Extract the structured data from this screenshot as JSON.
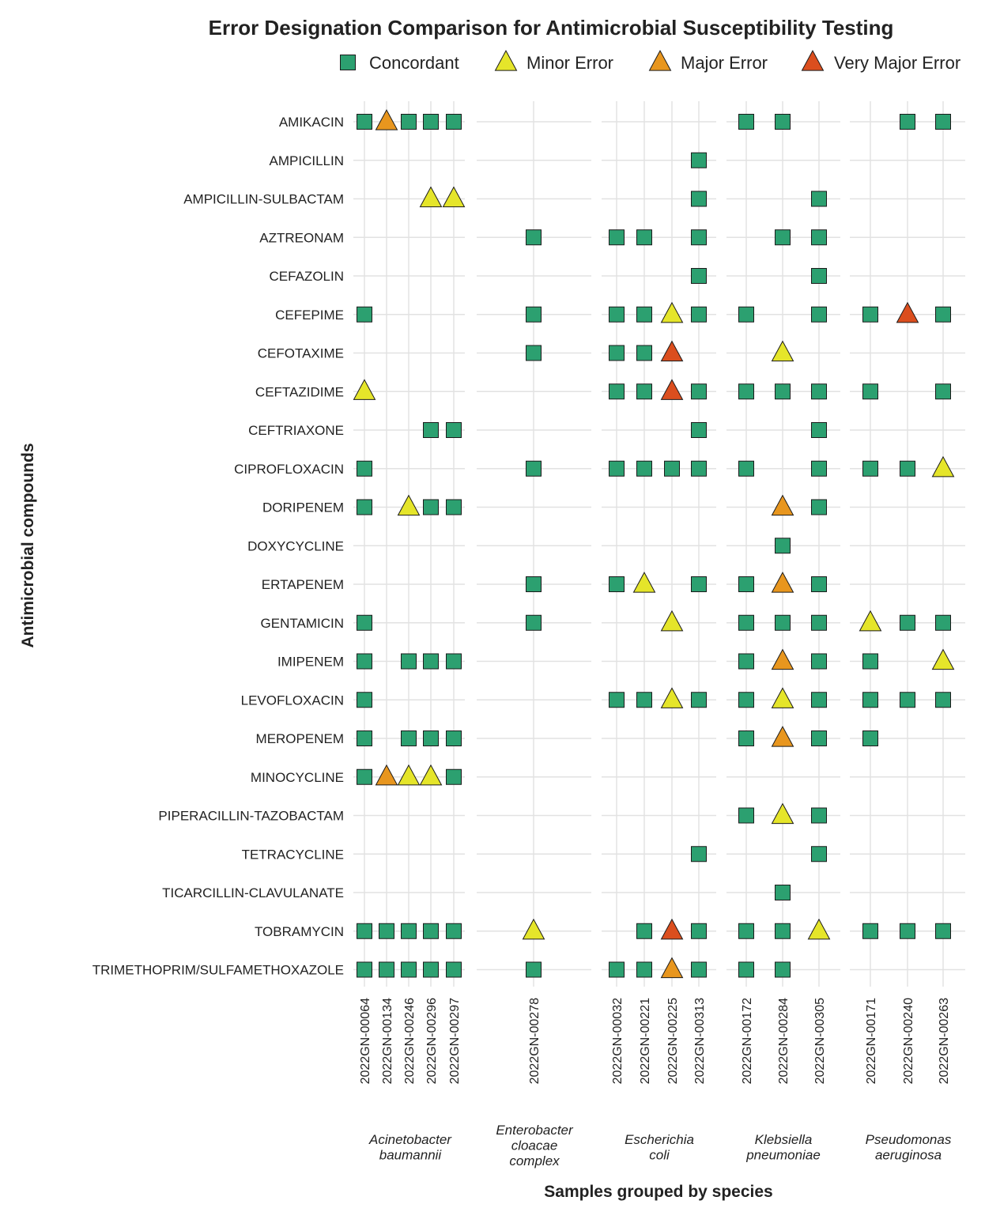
{
  "chart_data": {
    "type": "scatter",
    "title": "Error Designation Comparison for Antimicrobial Susceptibility Testing",
    "xlabel": "Samples grouped by species",
    "ylabel": "Antimicrobial compounds",
    "legend_position": "top",
    "grid": true,
    "categories_legend": [
      {
        "key": "C",
        "label": "Concordant",
        "shape": "square",
        "color": "#2ca070"
      },
      {
        "key": "m",
        "label": "Minor Error",
        "shape": "triangle",
        "color": "#e5e52a"
      },
      {
        "key": "M",
        "label": "Major Error",
        "shape": "triangle",
        "color": "#e8961e"
      },
      {
        "key": "V",
        "label": "Very Major Error",
        "shape": "triangle",
        "color": "#db4e1e"
      }
    ],
    "compounds": [
      "AMIKACIN",
      "AMPICILLIN",
      "AMPICILLIN-SULBACTAM",
      "AZTREONAM",
      "CEFAZOLIN",
      "CEFEPIME",
      "CEFOTAXIME",
      "CEFTAZIDIME",
      "CEFTRIAXONE",
      "CIPROFLOXACIN",
      "DORIPENEM",
      "DOXYCYCLINE",
      "ERTAPENEM",
      "GENTAMICIN",
      "IMIPENEM",
      "LEVOFLOXACIN",
      "MEROPENEM",
      "MINOCYCLINE",
      "PIPERACILLIN-TAZOBACTAM",
      "TETRACYCLINE",
      "TICARCILLIN-CLAVULANATE",
      "TOBRAMYCIN",
      "TRIMETHOPRIM/SULFAMETHOXAZOLE"
    ],
    "species": [
      {
        "name_lines": [
          "Acinetobacter",
          "baumannii"
        ],
        "samples": [
          "2022GN-00064",
          "2022GN-00134",
          "2022GN-00246",
          "2022GN-00296",
          "2022GN-00297"
        ]
      },
      {
        "name_lines": [
          "Enterobacter",
          "cloacae",
          "complex"
        ],
        "samples": [
          "2022GN-00278"
        ]
      },
      {
        "name_lines": [
          "Escherichia",
          "coli"
        ],
        "samples": [
          "2022GN-00032",
          "2022GN-00221",
          "2022GN-00225",
          "2022GN-00313"
        ]
      },
      {
        "name_lines": [
          "Klebsiella",
          "pneumoniae"
        ],
        "samples": [
          "2022GN-00172",
          "2022GN-00284",
          "2022GN-00305"
        ]
      },
      {
        "name_lines": [
          "Pseudomonas",
          "aeruginosa"
        ],
        "samples": [
          "2022GN-00171",
          "2022GN-00240",
          "2022GN-00263"
        ]
      }
    ],
    "points": [
      [
        "AMIKACIN",
        "2022GN-00064",
        "C"
      ],
      [
        "AMIKACIN",
        "2022GN-00134",
        "M"
      ],
      [
        "AMIKACIN",
        "2022GN-00246",
        "C"
      ],
      [
        "AMIKACIN",
        "2022GN-00296",
        "C"
      ],
      [
        "AMIKACIN",
        "2022GN-00297",
        "C"
      ],
      [
        "AMIKACIN",
        "2022GN-00172",
        "C"
      ],
      [
        "AMIKACIN",
        "2022GN-00284",
        "C"
      ],
      [
        "AMIKACIN",
        "2022GN-00240",
        "C"
      ],
      [
        "AMIKACIN",
        "2022GN-00263",
        "C"
      ],
      [
        "AMPICILLIN",
        "2022GN-00313",
        "C"
      ],
      [
        "AMPICILLIN-SULBACTAM",
        "2022GN-00296",
        "m"
      ],
      [
        "AMPICILLIN-SULBACTAM",
        "2022GN-00297",
        "m"
      ],
      [
        "AMPICILLIN-SULBACTAM",
        "2022GN-00313",
        "C"
      ],
      [
        "AMPICILLIN-SULBACTAM",
        "2022GN-00305",
        "C"
      ],
      [
        "AZTREONAM",
        "2022GN-00278",
        "C"
      ],
      [
        "AZTREONAM",
        "2022GN-00032",
        "C"
      ],
      [
        "AZTREONAM",
        "2022GN-00221",
        "C"
      ],
      [
        "AZTREONAM",
        "2022GN-00313",
        "C"
      ],
      [
        "AZTREONAM",
        "2022GN-00284",
        "C"
      ],
      [
        "AZTREONAM",
        "2022GN-00305",
        "C"
      ],
      [
        "CEFAZOLIN",
        "2022GN-00313",
        "C"
      ],
      [
        "CEFAZOLIN",
        "2022GN-00305",
        "C"
      ],
      [
        "CEFEPIME",
        "2022GN-00064",
        "C"
      ],
      [
        "CEFEPIME",
        "2022GN-00278",
        "C"
      ],
      [
        "CEFEPIME",
        "2022GN-00032",
        "C"
      ],
      [
        "CEFEPIME",
        "2022GN-00221",
        "C"
      ],
      [
        "CEFEPIME",
        "2022GN-00225",
        "m"
      ],
      [
        "CEFEPIME",
        "2022GN-00313",
        "C"
      ],
      [
        "CEFEPIME",
        "2022GN-00172",
        "C"
      ],
      [
        "CEFEPIME",
        "2022GN-00305",
        "C"
      ],
      [
        "CEFEPIME",
        "2022GN-00171",
        "C"
      ],
      [
        "CEFEPIME",
        "2022GN-00240",
        "V"
      ],
      [
        "CEFEPIME",
        "2022GN-00263",
        "C"
      ],
      [
        "CEFOTAXIME",
        "2022GN-00278",
        "C"
      ],
      [
        "CEFOTAXIME",
        "2022GN-00032",
        "C"
      ],
      [
        "CEFOTAXIME",
        "2022GN-00221",
        "C"
      ],
      [
        "CEFOTAXIME",
        "2022GN-00225",
        "V"
      ],
      [
        "CEFOTAXIME",
        "2022GN-00284",
        "m"
      ],
      [
        "CEFTAZIDIME",
        "2022GN-00064",
        "m"
      ],
      [
        "CEFTAZIDIME",
        "2022GN-00032",
        "C"
      ],
      [
        "CEFTAZIDIME",
        "2022GN-00221",
        "C"
      ],
      [
        "CEFTAZIDIME",
        "2022GN-00225",
        "V"
      ],
      [
        "CEFTAZIDIME",
        "2022GN-00313",
        "C"
      ],
      [
        "CEFTAZIDIME",
        "2022GN-00172",
        "C"
      ],
      [
        "CEFTAZIDIME",
        "2022GN-00284",
        "C"
      ],
      [
        "CEFTAZIDIME",
        "2022GN-00305",
        "C"
      ],
      [
        "CEFTAZIDIME",
        "2022GN-00171",
        "C"
      ],
      [
        "CEFTAZIDIME",
        "2022GN-00263",
        "C"
      ],
      [
        "CEFTRIAXONE",
        "2022GN-00296",
        "C"
      ],
      [
        "CEFTRIAXONE",
        "2022GN-00297",
        "C"
      ],
      [
        "CEFTRIAXONE",
        "2022GN-00313",
        "C"
      ],
      [
        "CEFTRIAXONE",
        "2022GN-00305",
        "C"
      ],
      [
        "CIPROFLOXACIN",
        "2022GN-00064",
        "C"
      ],
      [
        "CIPROFLOXACIN",
        "2022GN-00278",
        "C"
      ],
      [
        "CIPROFLOXACIN",
        "2022GN-00032",
        "C"
      ],
      [
        "CIPROFLOXACIN",
        "2022GN-00221",
        "C"
      ],
      [
        "CIPROFLOXACIN",
        "2022GN-00225",
        "C"
      ],
      [
        "CIPROFLOXACIN",
        "2022GN-00313",
        "C"
      ],
      [
        "CIPROFLOXACIN",
        "2022GN-00172",
        "C"
      ],
      [
        "CIPROFLOXACIN",
        "2022GN-00305",
        "C"
      ],
      [
        "CIPROFLOXACIN",
        "2022GN-00171",
        "C"
      ],
      [
        "CIPROFLOXACIN",
        "2022GN-00240",
        "C"
      ],
      [
        "CIPROFLOXACIN",
        "2022GN-00263",
        "m"
      ],
      [
        "DORIPENEM",
        "2022GN-00064",
        "C"
      ],
      [
        "DORIPENEM",
        "2022GN-00246",
        "m"
      ],
      [
        "DORIPENEM",
        "2022GN-00296",
        "C"
      ],
      [
        "DORIPENEM",
        "2022GN-00297",
        "C"
      ],
      [
        "DORIPENEM",
        "2022GN-00284",
        "M"
      ],
      [
        "DORIPENEM",
        "2022GN-00305",
        "C"
      ],
      [
        "DOXYCYCLINE",
        "2022GN-00284",
        "C"
      ],
      [
        "ERTAPENEM",
        "2022GN-00278",
        "C"
      ],
      [
        "ERTAPENEM",
        "2022GN-00032",
        "C"
      ],
      [
        "ERTAPENEM",
        "2022GN-00221",
        "m"
      ],
      [
        "ERTAPENEM",
        "2022GN-00313",
        "C"
      ],
      [
        "ERTAPENEM",
        "2022GN-00172",
        "C"
      ],
      [
        "ERTAPENEM",
        "2022GN-00284",
        "M"
      ],
      [
        "ERTAPENEM",
        "2022GN-00305",
        "C"
      ],
      [
        "GENTAMICIN",
        "2022GN-00064",
        "C"
      ],
      [
        "GENTAMICIN",
        "2022GN-00278",
        "C"
      ],
      [
        "GENTAMICIN",
        "2022GN-00225",
        "m"
      ],
      [
        "GENTAMICIN",
        "2022GN-00172",
        "C"
      ],
      [
        "GENTAMICIN",
        "2022GN-00284",
        "C"
      ],
      [
        "GENTAMICIN",
        "2022GN-00305",
        "C"
      ],
      [
        "GENTAMICIN",
        "2022GN-00171",
        "m"
      ],
      [
        "GENTAMICIN",
        "2022GN-00240",
        "C"
      ],
      [
        "GENTAMICIN",
        "2022GN-00263",
        "C"
      ],
      [
        "IMIPENEM",
        "2022GN-00064",
        "C"
      ],
      [
        "IMIPENEM",
        "2022GN-00246",
        "C"
      ],
      [
        "IMIPENEM",
        "2022GN-00296",
        "C"
      ],
      [
        "IMIPENEM",
        "2022GN-00297",
        "C"
      ],
      [
        "IMIPENEM",
        "2022GN-00172",
        "C"
      ],
      [
        "IMIPENEM",
        "2022GN-00284",
        "M"
      ],
      [
        "IMIPENEM",
        "2022GN-00305",
        "C"
      ],
      [
        "IMIPENEM",
        "2022GN-00171",
        "C"
      ],
      [
        "IMIPENEM",
        "2022GN-00263",
        "m"
      ],
      [
        "LEVOFLOXACIN",
        "2022GN-00064",
        "C"
      ],
      [
        "LEVOFLOXACIN",
        "2022GN-00032",
        "C"
      ],
      [
        "LEVOFLOXACIN",
        "2022GN-00221",
        "C"
      ],
      [
        "LEVOFLOXACIN",
        "2022GN-00225",
        "m"
      ],
      [
        "LEVOFLOXACIN",
        "2022GN-00313",
        "C"
      ],
      [
        "LEVOFLOXACIN",
        "2022GN-00172",
        "C"
      ],
      [
        "LEVOFLOXACIN",
        "2022GN-00284",
        "m"
      ],
      [
        "LEVOFLOXACIN",
        "2022GN-00305",
        "C"
      ],
      [
        "LEVOFLOXACIN",
        "2022GN-00171",
        "C"
      ],
      [
        "LEVOFLOXACIN",
        "2022GN-00240",
        "C"
      ],
      [
        "LEVOFLOXACIN",
        "2022GN-00263",
        "C"
      ],
      [
        "MEROPENEM",
        "2022GN-00064",
        "C"
      ],
      [
        "MEROPENEM",
        "2022GN-00246",
        "C"
      ],
      [
        "MEROPENEM",
        "2022GN-00296",
        "C"
      ],
      [
        "MEROPENEM",
        "2022GN-00297",
        "C"
      ],
      [
        "MEROPENEM",
        "2022GN-00172",
        "C"
      ],
      [
        "MEROPENEM",
        "2022GN-00284",
        "M"
      ],
      [
        "MEROPENEM",
        "2022GN-00305",
        "C"
      ],
      [
        "MEROPENEM",
        "2022GN-00171",
        "C"
      ],
      [
        "MINOCYCLINE",
        "2022GN-00064",
        "C"
      ],
      [
        "MINOCYCLINE",
        "2022GN-00134",
        "M"
      ],
      [
        "MINOCYCLINE",
        "2022GN-00246",
        "m"
      ],
      [
        "MINOCYCLINE",
        "2022GN-00296",
        "m"
      ],
      [
        "MINOCYCLINE",
        "2022GN-00297",
        "C"
      ],
      [
        "PIPERACILLIN-TAZOBACTAM",
        "2022GN-00172",
        "C"
      ],
      [
        "PIPERACILLIN-TAZOBACTAM",
        "2022GN-00284",
        "m"
      ],
      [
        "PIPERACILLIN-TAZOBACTAM",
        "2022GN-00305",
        "C"
      ],
      [
        "TETRACYCLINE",
        "2022GN-00313",
        "C"
      ],
      [
        "TETRACYCLINE",
        "2022GN-00305",
        "C"
      ],
      [
        "TICARCILLIN-CLAVULANATE",
        "2022GN-00284",
        "C"
      ],
      [
        "TOBRAMYCIN",
        "2022GN-00064",
        "C"
      ],
      [
        "TOBRAMYCIN",
        "2022GN-00134",
        "C"
      ],
      [
        "TOBRAMYCIN",
        "2022GN-00246",
        "C"
      ],
      [
        "TOBRAMYCIN",
        "2022GN-00296",
        "C"
      ],
      [
        "TOBRAMYCIN",
        "2022GN-00297",
        "C"
      ],
      [
        "TOBRAMYCIN",
        "2022GN-00278",
        "m"
      ],
      [
        "TOBRAMYCIN",
        "2022GN-00221",
        "C"
      ],
      [
        "TOBRAMYCIN",
        "2022GN-00225",
        "V"
      ],
      [
        "TOBRAMYCIN",
        "2022GN-00313",
        "C"
      ],
      [
        "TOBRAMYCIN",
        "2022GN-00172",
        "C"
      ],
      [
        "TOBRAMYCIN",
        "2022GN-00284",
        "C"
      ],
      [
        "TOBRAMYCIN",
        "2022GN-00305",
        "m"
      ],
      [
        "TOBRAMYCIN",
        "2022GN-00171",
        "C"
      ],
      [
        "TOBRAMYCIN",
        "2022GN-00240",
        "C"
      ],
      [
        "TOBRAMYCIN",
        "2022GN-00263",
        "C"
      ],
      [
        "TRIMETHOPRIM/SULFAMETHOXAZOLE",
        "2022GN-00064",
        "C"
      ],
      [
        "TRIMETHOPRIM/SULFAMETHOXAZOLE",
        "2022GN-00134",
        "C"
      ],
      [
        "TRIMETHOPRIM/SULFAMETHOXAZOLE",
        "2022GN-00246",
        "C"
      ],
      [
        "TRIMETHOPRIM/SULFAMETHOXAZOLE",
        "2022GN-00296",
        "C"
      ],
      [
        "TRIMETHOPRIM/SULFAMETHOXAZOLE",
        "2022GN-00297",
        "C"
      ],
      [
        "TRIMETHOPRIM/SULFAMETHOXAZOLE",
        "2022GN-00278",
        "C"
      ],
      [
        "TRIMETHOPRIM/SULFAMETHOXAZOLE",
        "2022GN-00032",
        "C"
      ],
      [
        "TRIMETHOPRIM/SULFAMETHOXAZOLE",
        "2022GN-00221",
        "C"
      ],
      [
        "TRIMETHOPRIM/SULFAMETHOXAZOLE",
        "2022GN-00225",
        "M"
      ],
      [
        "TRIMETHOPRIM/SULFAMETHOXAZOLE",
        "2022GN-00313",
        "C"
      ],
      [
        "TRIMETHOPRIM/SULFAMETHOXAZOLE",
        "2022GN-00172",
        "C"
      ],
      [
        "TRIMETHOPRIM/SULFAMETHOXAZOLE",
        "2022GN-00284",
        "C"
      ]
    ]
  }
}
